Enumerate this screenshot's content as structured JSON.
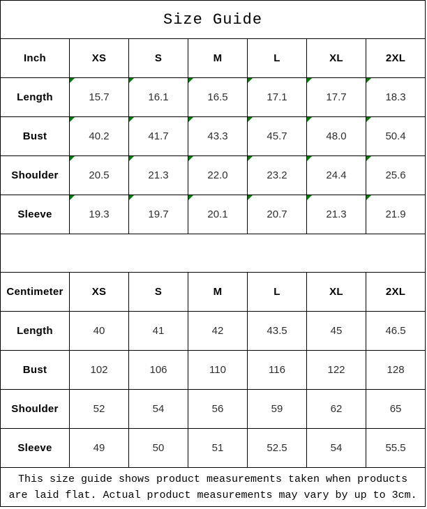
{
  "title": "Size Guide",
  "tables": [
    {
      "unit_label": "Inch",
      "sizes": [
        "XS",
        "S",
        "M",
        "L",
        "XL",
        "2XL"
      ],
      "rows": [
        {
          "label": "Length",
          "values": [
            "15.7",
            "16.1",
            "16.5",
            "17.1",
            "17.7",
            "18.3"
          ]
        },
        {
          "label": "Bust",
          "values": [
            "40.2",
            "41.7",
            "43.3",
            "45.7",
            "48.0",
            "50.4"
          ]
        },
        {
          "label": "Shoulder",
          "values": [
            "20.5",
            "21.3",
            "22.0",
            "23.2",
            "24.4",
            "25.6"
          ]
        },
        {
          "label": "Sleeve",
          "values": [
            "19.3",
            "19.7",
            "20.1",
            "20.7",
            "21.3",
            "21.9"
          ]
        }
      ],
      "has_cell_markers": true
    },
    {
      "unit_label": "Centimeter",
      "sizes": [
        "XS",
        "S",
        "M",
        "L",
        "XL",
        "2XL"
      ],
      "rows": [
        {
          "label": "Length",
          "values": [
            "40",
            "41",
            "42",
            "43.5",
            "45",
            "46.5"
          ]
        },
        {
          "label": "Bust",
          "values": [
            "102",
            "106",
            "110",
            "116",
            "122",
            "128"
          ]
        },
        {
          "label": "Shoulder",
          "values": [
            "52",
            "54",
            "56",
            "59",
            "62",
            "65"
          ]
        },
        {
          "label": "Sleeve",
          "values": [
            "49",
            "50",
            "51",
            "52.5",
            "54",
            "55.5"
          ]
        }
      ],
      "has_cell_markers": false
    }
  ],
  "footer": {
    "line1": "This size guide shows product measurements taken when products",
    "line2": "are laid flat. Actual product measurements may vary by up to 3cm."
  },
  "colors": {
    "border": "#000000",
    "background": "#ffffff",
    "text": "#000000",
    "cell_marker_green": "#008000"
  }
}
